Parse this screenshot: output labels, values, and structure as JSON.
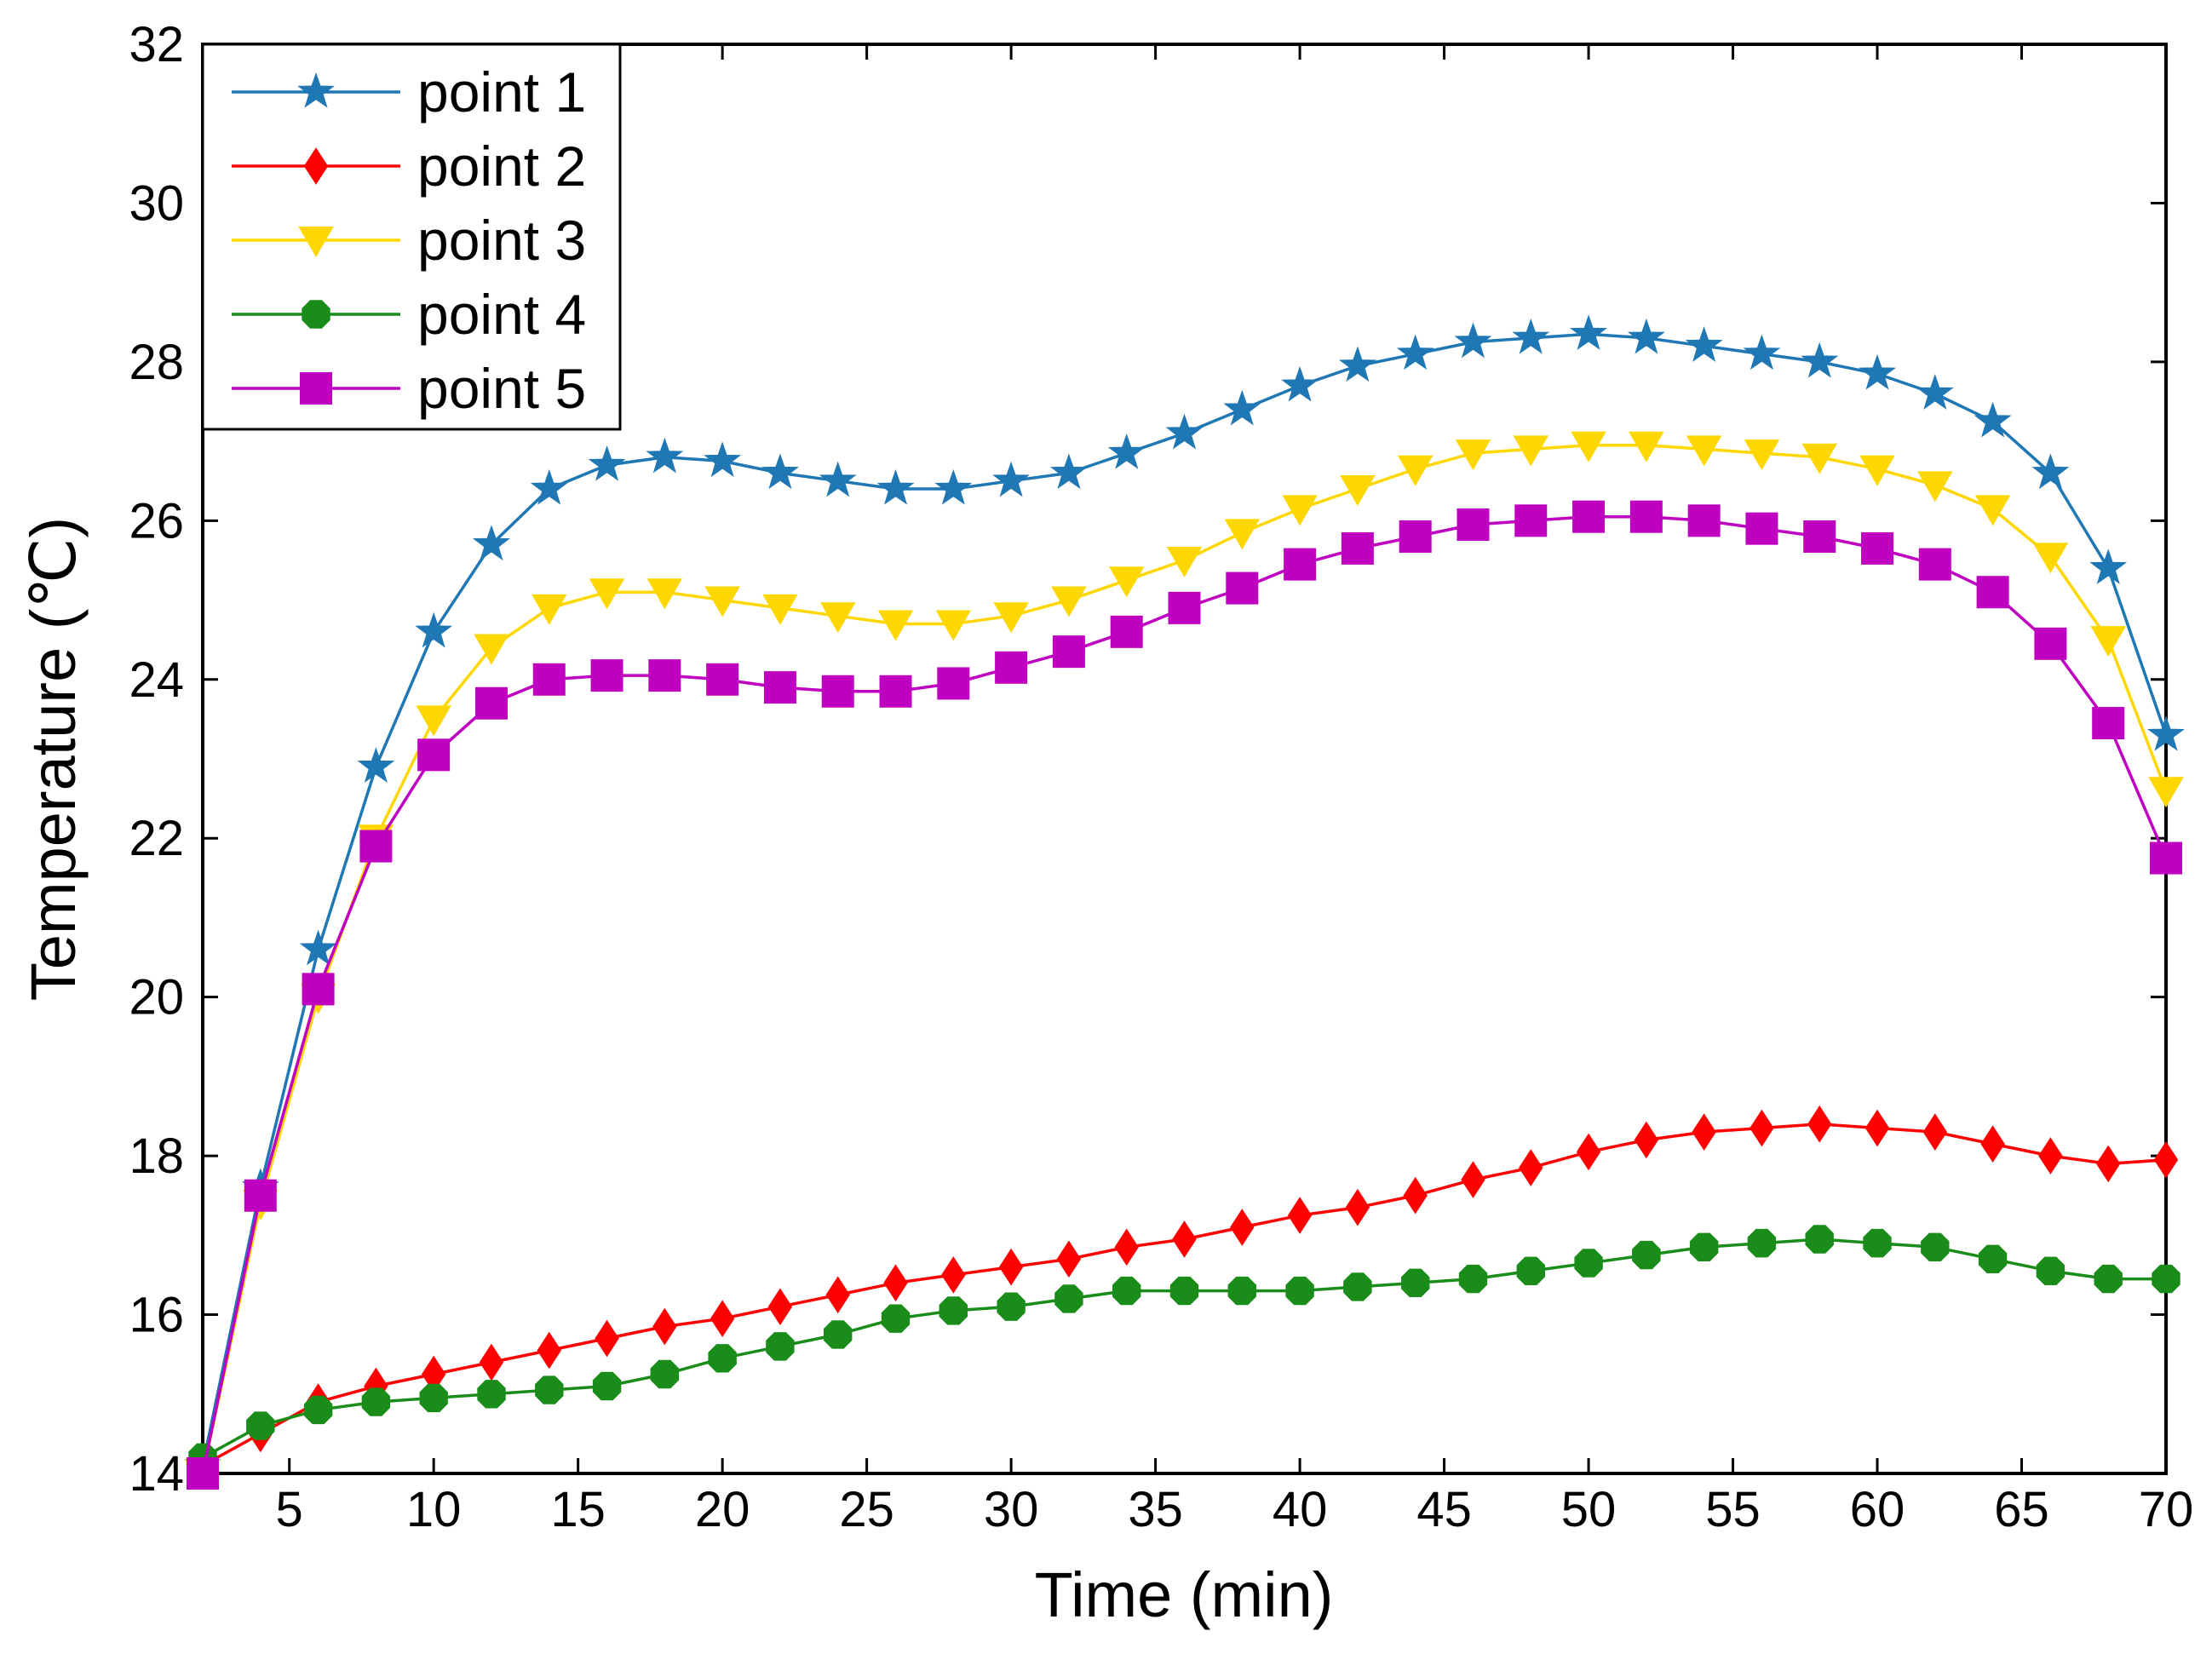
{
  "chart_data": {
    "type": "line",
    "title": "",
    "xlabel": "Time (min)",
    "ylabel": "Temperature (℃)",
    "xlim": [
      2,
      70
    ],
    "ylim": [
      14,
      32
    ],
    "xticks": [
      5,
      10,
      15,
      20,
      25,
      30,
      35,
      40,
      45,
      50,
      55,
      60,
      65,
      70
    ],
    "yticks": [
      14,
      16,
      18,
      20,
      22,
      24,
      26,
      28,
      30,
      32
    ],
    "grid": false,
    "legend_position": "top-left",
    "x": [
      2,
      4,
      6,
      8,
      10,
      12,
      14,
      16,
      18,
      20,
      22,
      24,
      26,
      28,
      30,
      32,
      34,
      36,
      38,
      40,
      42,
      44,
      46,
      48,
      50,
      52,
      54,
      56,
      58,
      60,
      62,
      64,
      66,
      68,
      70
    ],
    "series": [
      {
        "name": "point 1",
        "color": "#1f77b4",
        "marker": "star",
        "values": [
          14.1,
          17.6,
          20.6,
          22.9,
          24.6,
          25.7,
          26.4,
          26.7,
          26.8,
          26.75,
          26.6,
          26.5,
          26.4,
          26.4,
          26.5,
          26.6,
          26.85,
          27.1,
          27.4,
          27.7,
          27.95,
          28.1,
          28.25,
          28.3,
          28.35,
          28.3,
          28.2,
          28.1,
          28.0,
          27.85,
          27.6,
          27.25,
          26.6,
          25.4,
          23.3
        ]
      },
      {
        "name": "point 2",
        "color": "#ff0000",
        "marker": "diamond",
        "values": [
          14.1,
          14.5,
          14.9,
          15.1,
          15.25,
          15.4,
          15.55,
          15.7,
          15.85,
          15.95,
          16.1,
          16.25,
          16.4,
          16.5,
          16.6,
          16.7,
          16.85,
          16.95,
          17.1,
          17.25,
          17.35,
          17.5,
          17.7,
          17.85,
          18.05,
          18.2,
          18.3,
          18.35,
          18.4,
          18.35,
          18.3,
          18.15,
          18.0,
          17.9,
          17.95
        ]
      },
      {
        "name": "point 3",
        "color": "#ffd700",
        "marker": "triangle-down",
        "values": [
          14.0,
          17.4,
          20.0,
          22.0,
          23.5,
          24.4,
          24.9,
          25.1,
          25.1,
          25.0,
          24.9,
          24.8,
          24.7,
          24.7,
          24.8,
          25.0,
          25.25,
          25.5,
          25.85,
          26.15,
          26.4,
          26.65,
          26.85,
          26.9,
          26.95,
          26.95,
          26.9,
          26.85,
          26.8,
          26.65,
          26.45,
          26.15,
          25.55,
          24.5,
          22.6
        ]
      },
      {
        "name": "point 4",
        "color": "#1a8c1a",
        "marker": "circle",
        "values": [
          14.2,
          14.6,
          14.8,
          14.9,
          14.95,
          15.0,
          15.05,
          15.1,
          15.25,
          15.45,
          15.6,
          15.75,
          15.95,
          16.05,
          16.1,
          16.2,
          16.3,
          16.3,
          16.3,
          16.3,
          16.35,
          16.4,
          16.45,
          16.55,
          16.65,
          16.75,
          16.85,
          16.9,
          16.95,
          16.9,
          16.85,
          16.7,
          16.55,
          16.45,
          16.45
        ]
      },
      {
        "name": "point 5",
        "color": "#c000c0",
        "marker": "square",
        "values": [
          14.0,
          17.5,
          20.1,
          21.9,
          23.05,
          23.7,
          24.0,
          24.05,
          24.05,
          24.0,
          23.9,
          23.85,
          23.85,
          23.95,
          24.15,
          24.35,
          24.6,
          24.9,
          25.15,
          25.45,
          25.65,
          25.8,
          25.95,
          26.0,
          26.05,
          26.05,
          26.0,
          25.9,
          25.8,
          25.65,
          25.45,
          25.1,
          24.45,
          23.45,
          21.75
        ]
      }
    ]
  }
}
